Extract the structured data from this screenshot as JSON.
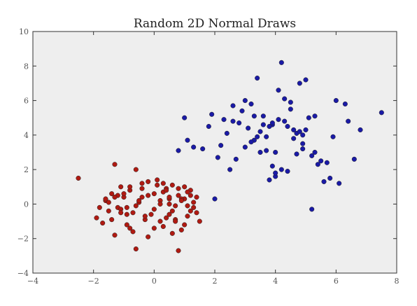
{
  "chart_data": {
    "type": "scatter",
    "title": "Random 2D Normal Draws",
    "xlabel": "",
    "ylabel": "",
    "xlim": [
      -4,
      8
    ],
    "ylim": [
      -4,
      10
    ],
    "xticks": [
      "−4",
      "−2",
      "0",
      "2",
      "4",
      "6",
      "8"
    ],
    "yticks": [
      "−4",
      "−2",
      "0",
      "2",
      "4",
      "6",
      "8",
      "10"
    ],
    "xtick_values": [
      -4,
      -2,
      0,
      2,
      4,
      6,
      8
    ],
    "ytick_values": [
      -4,
      -2,
      0,
      2,
      4,
      6,
      8,
      10
    ],
    "grid": false,
    "background": "#eeeeee",
    "series": [
      {
        "color": "#b01a12",
        "x": [
          -2.5,
          -1.9,
          -1.6,
          -1.5,
          -1.4,
          -1.3,
          -1.2,
          -1.1,
          -1.0,
          -0.9,
          -0.8,
          -0.7,
          -0.6,
          -0.5,
          -0.4,
          -0.3,
          -0.2,
          0.0,
          0.1,
          0.2,
          0.3,
          0.4,
          0.5,
          0.6,
          0.7,
          0.8,
          0.9,
          1.0,
          1.1,
          1.2,
          1.3,
          1.4,
          1.5,
          -1.3,
          -0.6,
          0.8,
          -0.9,
          0.3,
          1.2,
          -1.7,
          -0.2,
          0.5,
          1.0,
          -1.5,
          -0.8,
          0.0,
          0.7,
          1.3,
          -1.1,
          -0.4,
          0.2,
          0.9,
          -1.8,
          -1.2,
          -0.7,
          0.1,
          0.6,
          1.1,
          -1.4,
          -0.5,
          0.4,
          1.4,
          -1.0,
          -0.3,
          0.5,
          1.0,
          -1.6,
          -0.6,
          0.3,
          0.8,
          -1.3,
          -0.1,
          0.6,
          1.2,
          -0.9,
          0.0,
          0.9,
          -1.1,
          -0.4,
          0.4,
          1.1,
          -0.8,
          0.2,
          0.7,
          -0.2,
          0.5
        ],
        "y": [
          1.5,
          -0.8,
          0.2,
          -0.4,
          0.6,
          2.3,
          -0.2,
          1.0,
          0.4,
          -1.2,
          0.8,
          -0.5,
          2.0,
          0.1,
          1.2,
          -0.9,
          0.5,
          -0.3,
          1.4,
          0.2,
          -1.3,
          0.9,
          -0.6,
          1.1,
          -0.1,
          0.5,
          -1.5,
          0.3,
          -0.7,
          0.8,
          -0.2,
          0.4,
          -1.0,
          -1.8,
          -2.6,
          -2.7,
          -0.6,
          0.7,
          -0.4,
          -1.1,
          -1.9,
          0.3,
          1.0,
          0.1,
          -1.4,
          0.6,
          -0.9,
          0.1,
          -0.3,
          0.9,
          -1.0,
          0.3,
          -0.2,
          0.5,
          -1.6,
          1.1,
          -0.4,
          0.7,
          -0.9,
          0.2,
          0.8,
          -0.5,
          0.6,
          -0.7,
          0.0,
          -1.2,
          0.3,
          -0.1,
          1.2,
          0.9,
          0.4,
          -0.6,
          -1.7,
          0.5,
          -0.2,
          -1.4,
          0.2,
          -0.5,
          0.4,
          -0.8,
          -0.1,
          1.0,
          0.0,
          -1.0,
          1.3,
          0.4
        ]
      },
      {
        "color": "#1a1aa6",
        "x": [
          0.8,
          1.0,
          1.1,
          1.3,
          1.6,
          1.8,
          1.9,
          2.0,
          2.2,
          2.4,
          2.5,
          2.6,
          2.7,
          2.8,
          3.0,
          3.1,
          3.2,
          3.3,
          3.4,
          3.5,
          3.6,
          3.7,
          3.8,
          3.9,
          4.0,
          4.1,
          4.2,
          4.3,
          4.4,
          4.5,
          4.6,
          4.7,
          4.8,
          4.9,
          5.0,
          5.1,
          5.2,
          5.3,
          5.5,
          5.7,
          5.9,
          6.1,
          6.3,
          6.4,
          6.6,
          6.8,
          7.5,
          4.2,
          3.4,
          5.0,
          2.9,
          3.9,
          4.7,
          3.2,
          4.4,
          5.3,
          3.7,
          4.0,
          2.3,
          5.6,
          3.5,
          4.9,
          4.1,
          2.6,
          3.8,
          4.6,
          5.2,
          3.3,
          4.3,
          4.8,
          3.6,
          5.4,
          2.1,
          4.5,
          3.0,
          5.8,
          4.0,
          6.0,
          3.9,
          4.9
        ],
        "y": [
          3.1,
          5.0,
          3.7,
          3.3,
          3.2,
          4.5,
          5.2,
          0.3,
          3.4,
          4.1,
          2.0,
          5.7,
          2.6,
          4.7,
          6.0,
          4.4,
          5.8,
          3.7,
          7.3,
          4.2,
          5.1,
          3.9,
          1.4,
          4.6,
          3.0,
          6.6,
          8.2,
          4.8,
          1.9,
          5.9,
          4.3,
          2.9,
          7.0,
          3.5,
          4.3,
          5.0,
          -0.3,
          3.0,
          2.5,
          2.4,
          3.9,
          1.2,
          5.8,
          4.8,
          2.6,
          4.3,
          5.3,
          2.0,
          3.9,
          7.2,
          5.4,
          2.2,
          4.1,
          3.6,
          4.5,
          5.1,
          3.1,
          1.6,
          4.9,
          1.3,
          3.0,
          3.2,
          4.9,
          4.8,
          4.5,
          3.8,
          2.8,
          5.1,
          6.1,
          4.2,
          4.6,
          2.3,
          2.7,
          5.5,
          3.3,
          1.5,
          1.8,
          6.0,
          4.7,
          4.0
        ]
      }
    ]
  }
}
